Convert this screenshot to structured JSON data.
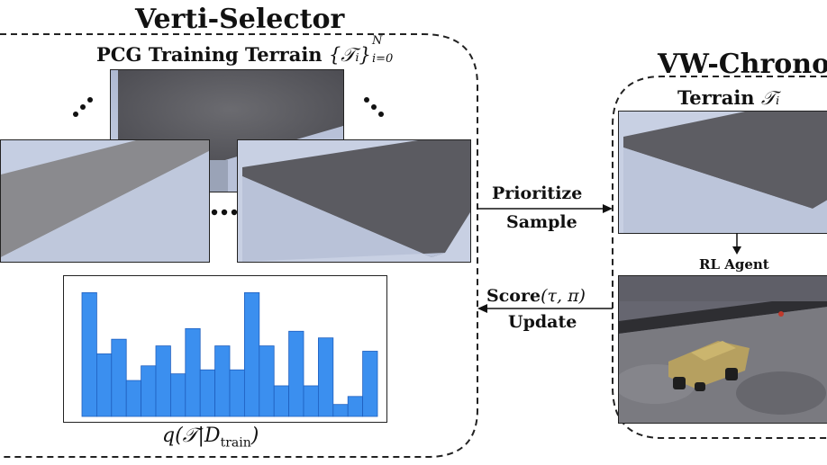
{
  "left_section": {
    "title": "Verti-Selector",
    "subtitle_text": "PCG Training Terrain",
    "subtitle_math": "{𝒯ᵢ}",
    "subtitle_sup": "N",
    "subtitle_sub": "i=0",
    "ellipsis": "…",
    "histogram_label_math": "q(𝒯|D",
    "histogram_label_sub": "train",
    "histogram_label_close": ")"
  },
  "right_section": {
    "title": "VW-Chrono",
    "terrain_label": "Terrain",
    "terrain_math": "𝒯ᵢ",
    "agent_label": "RL Agent"
  },
  "arrows": {
    "top_line1": "Prioritize",
    "top_line2": "Sample",
    "bottom_score": "Score",
    "bottom_args": "(τ, π)",
    "bottom_line2": "Update"
  },
  "chart_data": {
    "type": "bar",
    "values": [
      0.93,
      0.47,
      0.58,
      0.27,
      0.38,
      0.53,
      0.32,
      0.66,
      0.35,
      0.53,
      0.35,
      0.93,
      0.53,
      0.23,
      0.64,
      0.23,
      0.59,
      0.09,
      0.15,
      0.49
    ],
    "ylim": [
      0,
      1
    ],
    "color": "#3b8fef"
  }
}
